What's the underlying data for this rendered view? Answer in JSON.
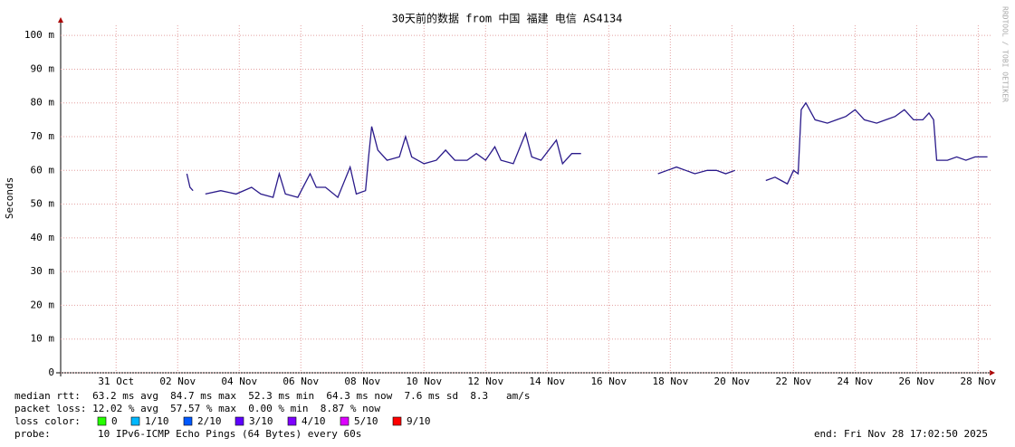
{
  "chart_data": {
    "type": "line",
    "title": "30天前的数据 from 中国 福建 电信 AS4134",
    "y_label": "Seconds",
    "watermark": "RRDTOOL / TOBI OETIKER",
    "xlim": [
      0,
      30.2
    ],
    "xticks": [
      {
        "value": 1.8,
        "label": "31 Oct"
      },
      {
        "value": 3.8,
        "label": "02 Nov"
      },
      {
        "value": 5.8,
        "label": "04 Nov"
      },
      {
        "value": 7.8,
        "label": "06 Nov"
      },
      {
        "value": 9.8,
        "label": "08 Nov"
      },
      {
        "value": 11.8,
        "label": "10 Nov"
      },
      {
        "value": 13.8,
        "label": "12 Nov"
      },
      {
        "value": 15.8,
        "label": "14 Nov"
      },
      {
        "value": 17.8,
        "label": "16 Nov"
      },
      {
        "value": 19.8,
        "label": "18 Nov"
      },
      {
        "value": 21.8,
        "label": "20 Nov"
      },
      {
        "value": 23.8,
        "label": "22 Nov"
      },
      {
        "value": 25.8,
        "label": "24 Nov"
      },
      {
        "value": 27.8,
        "label": "26 Nov"
      },
      {
        "value": 29.8,
        "label": "28 Nov"
      }
    ],
    "ylim": [
      0,
      103
    ],
    "yticks": [
      0,
      {
        "value": 10,
        "label": "10 m"
      },
      {
        "value": 20,
        "label": "20 m"
      },
      {
        "value": 30,
        "label": "30 m"
      },
      {
        "value": 40,
        "label": "40 m"
      },
      {
        "value": 50,
        "label": "50 m"
      },
      {
        "value": 60,
        "label": "60 m"
      },
      {
        "value": 70,
        "label": "70 m"
      },
      {
        "value": 80,
        "label": "80 m"
      },
      {
        "value": 90,
        "label": "90 m"
      },
      {
        "value": 100,
        "label": "100 m"
      }
    ],
    "grid": true,
    "x": [
      4.1,
      4.2,
      4.3,
      4.5,
      4.7,
      5.2,
      5.7,
      6.2,
      6.5,
      6.9,
      7.1,
      7.3,
      7.7,
      8.1,
      8.3,
      8.6,
      9.0,
      9.4,
      9.6,
      9.9,
      10.0,
      10.1,
      10.3,
      10.6,
      11.0,
      11.2,
      11.4,
      11.8,
      12.2,
      12.5,
      12.8,
      13.2,
      13.5,
      13.8,
      14.1,
      14.3,
      14.7,
      15.1,
      15.3,
      15.6,
      16.1,
      16.3,
      16.6,
      16.9,
      18.0,
      19.4,
      19.7,
      20.0,
      20.3,
      20.6,
      21.0,
      21.3,
      21.6,
      21.9,
      22.4,
      22.9,
      23.2,
      23.4,
      23.6,
      23.8,
      23.95,
      24.05,
      24.2,
      24.5,
      24.9,
      25.2,
      25.5,
      25.8,
      26.1,
      26.5,
      26.8,
      27.1,
      27.4,
      27.7,
      28.0,
      28.2,
      28.35,
      28.45,
      28.8,
      29.1,
      29.4,
      29.7,
      30.1
    ],
    "series": [
      {
        "name": "median rtt",
        "color": "#2a1a8a",
        "values": [
          59,
          55,
          54,
          null,
          53,
          54,
          53,
          55,
          53,
          52,
          59,
          53,
          52,
          59,
          55,
          55,
          52,
          61,
          53,
          54,
          64,
          73,
          66,
          63,
          64,
          70,
          64,
          62,
          63,
          66,
          63,
          63,
          65,
          63,
          67,
          63,
          62,
          71,
          64,
          63,
          69,
          62,
          65,
          65,
          null,
          59,
          60,
          61,
          60,
          59,
          60,
          60,
          59,
          60,
          null,
          57,
          58,
          57,
          56,
          60,
          59,
          78,
          80,
          75,
          74,
          75,
          76,
          78,
          75,
          74,
          75,
          76,
          78,
          75,
          75,
          77,
          75,
          63,
          63,
          64,
          63,
          64,
          64
        ]
      }
    ],
    "stats": [
      "median rtt:  63.2 ms avg  84.7 ms max  52.3 ms min  64.3 ms now  7.6 ms sd  8.3   am/s",
      "packet loss: 12.02 % avg  57.57 % max  0.00 % min  8.87 % now"
    ],
    "loss_color_label": "loss color:",
    "loss_colors": [
      {
        "name": "0",
        "color": "#26ff00"
      },
      {
        "name": "1/10",
        "color": "#00b8ff"
      },
      {
        "name": "2/10",
        "color": "#0059ff"
      },
      {
        "name": "3/10",
        "color": "#5e00ff"
      },
      {
        "name": "4/10",
        "color": "#7e00ff"
      },
      {
        "name": "5/10",
        "color": "#dd00ff"
      },
      {
        "name": "9/10",
        "color": "#ff0000"
      }
    ],
    "probe_label": "probe:",
    "probe": "10 IPv6-ICMP Echo Pings (64 Bytes) every 60s",
    "end": "end: Fri Nov 28 17:02:50 2025"
  }
}
